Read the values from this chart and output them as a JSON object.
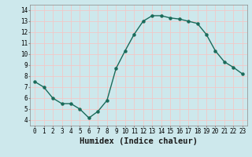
{
  "x": [
    0,
    1,
    2,
    3,
    4,
    5,
    6,
    7,
    8,
    9,
    10,
    11,
    12,
    13,
    14,
    15,
    16,
    17,
    18,
    19,
    20,
    21,
    22,
    23
  ],
  "y": [
    7.5,
    7.0,
    6.0,
    5.5,
    5.5,
    5.0,
    4.2,
    4.8,
    5.8,
    8.7,
    10.3,
    11.8,
    13.0,
    13.5,
    13.5,
    13.3,
    13.2,
    13.0,
    12.8,
    11.8,
    10.3,
    9.3,
    8.8,
    8.2
  ],
  "line_color": "#1a6b5a",
  "marker": "o",
  "markersize": 2.2,
  "linewidth": 1.0,
  "xlabel": "Humidex (Indice chaleur)",
  "xlim": [
    -0.5,
    23.5
  ],
  "ylim": [
    3.5,
    14.5
  ],
  "yticks": [
    4,
    5,
    6,
    7,
    8,
    9,
    10,
    11,
    12,
    13,
    14
  ],
  "xticks": [
    0,
    1,
    2,
    3,
    4,
    5,
    6,
    7,
    8,
    9,
    10,
    11,
    12,
    13,
    14,
    15,
    16,
    17,
    18,
    19,
    20,
    21,
    22,
    23
  ],
  "background_color": "#cde8ec",
  "grid_color_major": "#f2c8c8",
  "grid_color_minor": "#f2c8c8",
  "tick_fontsize": 5.5,
  "xlabel_fontsize": 7.5
}
